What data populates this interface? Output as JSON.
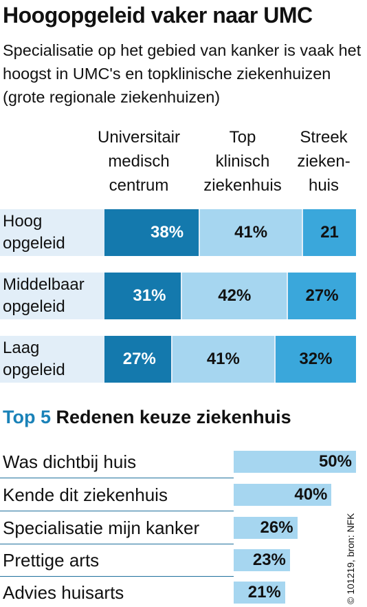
{
  "title": "Hoogopgeleid vaker naar UMC",
  "subtitle": "Specialisatie op het gebied van kanker is vaak het hoogst in UMC's en topklinische ziekenhuizen (grote regionale ziekenhuizen)",
  "columns": [
    {
      "lines": [
        "Universitair",
        "medisch",
        "centrum"
      ]
    },
    {
      "lines": [
        "Top",
        "klinisch",
        "ziekenhuis"
      ]
    },
    {
      "lines": [
        "Streek",
        "zieken-",
        "huis"
      ]
    }
  ],
  "section2": {
    "accent": "Top 5",
    "rest": "Redenen keuze ziekenhuis"
  },
  "source": "© 101219, bron: NFK",
  "colors": {
    "umc": "#1479ad",
    "topklinisch": "#a6d6f0",
    "streek": "#3aa7db",
    "row_bg": "#e2eef8",
    "reason_bar": "#a6d6f0",
    "accent": "#1a82b8"
  },
  "chart_data": [
    {
      "type": "bar",
      "stacked": true,
      "orientation": "horizontal",
      "title": "Hoogopgeleid vaker naar UMC",
      "categories": [
        {
          "lines": [
            "Hoog",
            "opgeleid"
          ]
        },
        {
          "lines": [
            "Middelbaar",
            "opgeleid"
          ]
        },
        {
          "lines": [
            "Laag",
            "opgeleid"
          ]
        }
      ],
      "series": [
        {
          "name": "Universitair medisch centrum",
          "values": [
            38,
            31,
            27
          ],
          "labels": [
            "38%",
            "31%",
            "27%"
          ]
        },
        {
          "name": "Top klinisch ziekenhuis",
          "values": [
            41,
            42,
            41
          ],
          "labels": [
            "41%",
            "42%",
            "41%"
          ]
        },
        {
          "name": "Streek ziekenhuis",
          "values": [
            21,
            27,
            32
          ],
          "labels": [
            "21",
            "27%",
            "32%"
          ]
        }
      ]
    },
    {
      "type": "bar",
      "orientation": "horizontal",
      "title": "Top 5 Redenen keuze ziekenhuis",
      "categories": [
        "Was dichtbij huis",
        "Kende dit ziekenhuis",
        "Specialisatie mijn kanker",
        "Prettige arts",
        "Advies huisarts"
      ],
      "values": [
        50,
        40,
        26,
        23,
        21
      ],
      "labels": [
        "50%",
        "40%",
        "26%",
        "23%",
        "21%"
      ]
    }
  ]
}
